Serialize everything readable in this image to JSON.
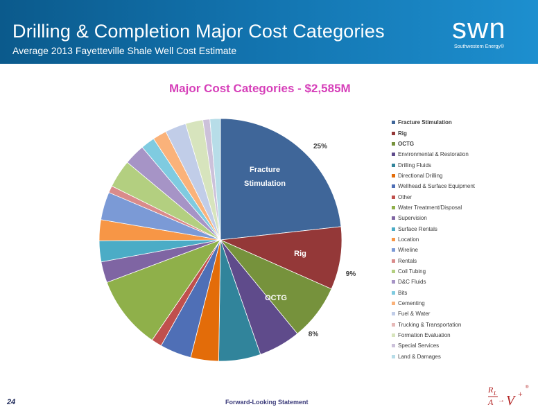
{
  "header": {
    "title": "Drilling & Completion Major Cost Categories",
    "subtitle": "Average 2013 Fayetteville Shale Well Cost Estimate",
    "logo_text": "swn",
    "logo_subtext": "Southwestern Energy®"
  },
  "chart_data": {
    "type": "pie",
    "title": "Major Cost Categories - $2,585M",
    "legend_position": "right",
    "slices": [
      {
        "name": "Fracture Stimulation",
        "value": 25,
        "color": "#3f6699",
        "label": "Fracture Stimulation",
        "pct_label": "25%"
      },
      {
        "name": "Rig",
        "value": 9,
        "color": "#943838",
        "label": "Rig",
        "pct_label": "9%"
      },
      {
        "name": "OCTG",
        "value": 8,
        "color": "#76923c",
        "label": "OCTG",
        "pct_label": "8%"
      },
      {
        "name": "Environmental & Restoration",
        "value": 6,
        "color": "#5f4b8b"
      },
      {
        "name": "Drilling Fluids",
        "value": 6,
        "color": "#31849b"
      },
      {
        "name": "Directional Drilling",
        "value": 4,
        "color": "#e36c09"
      },
      {
        "name": "Wellhead & Surface Equipment",
        "value": 4.5,
        "color": "#4f6fb6"
      },
      {
        "name": "Other",
        "value": 1.5,
        "color": "#c0504d"
      },
      {
        "name": "Water Treatment/Disposal",
        "value": 10.5,
        "color": "#8fb04a"
      },
      {
        "name": "Supervision",
        "value": 3,
        "color": "#7f65a3"
      },
      {
        "name": "Surface Rentals",
        "value": 3,
        "color": "#4bacc6"
      },
      {
        "name": "Location",
        "value": 3,
        "color": "#f79646"
      },
      {
        "name": "Wireline",
        "value": 4,
        "color": "#7b9ad6"
      },
      {
        "name": "Rentals",
        "value": 1,
        "color": "#d98b8b"
      },
      {
        "name": "Coil Tubing",
        "value": 4,
        "color": "#b3cf80"
      },
      {
        "name": "D&C Fluids",
        "value": 3,
        "color": "#a694c6"
      },
      {
        "name": "Bits",
        "value": 2,
        "color": "#7fcbe0"
      },
      {
        "name": "Cementing",
        "value": 2,
        "color": "#fab27a"
      },
      {
        "name": "Fuel & Water",
        "value": 3,
        "color": "#c1cde8"
      },
      {
        "name": "Trucking & Transportation",
        "value": 0,
        "color": "#e6b9b8"
      },
      {
        "name": "Formation Evaluation",
        "value": 2.5,
        "color": "#d7e4bd"
      },
      {
        "name": "Special Services",
        "value": 1,
        "color": "#ccc1da"
      },
      {
        "name": "Land & Damages",
        "value": 1.5,
        "color": "#b7dde8"
      }
    ]
  },
  "footer": {
    "page_number": "24",
    "statement": "Forward-Looking Statement"
  }
}
